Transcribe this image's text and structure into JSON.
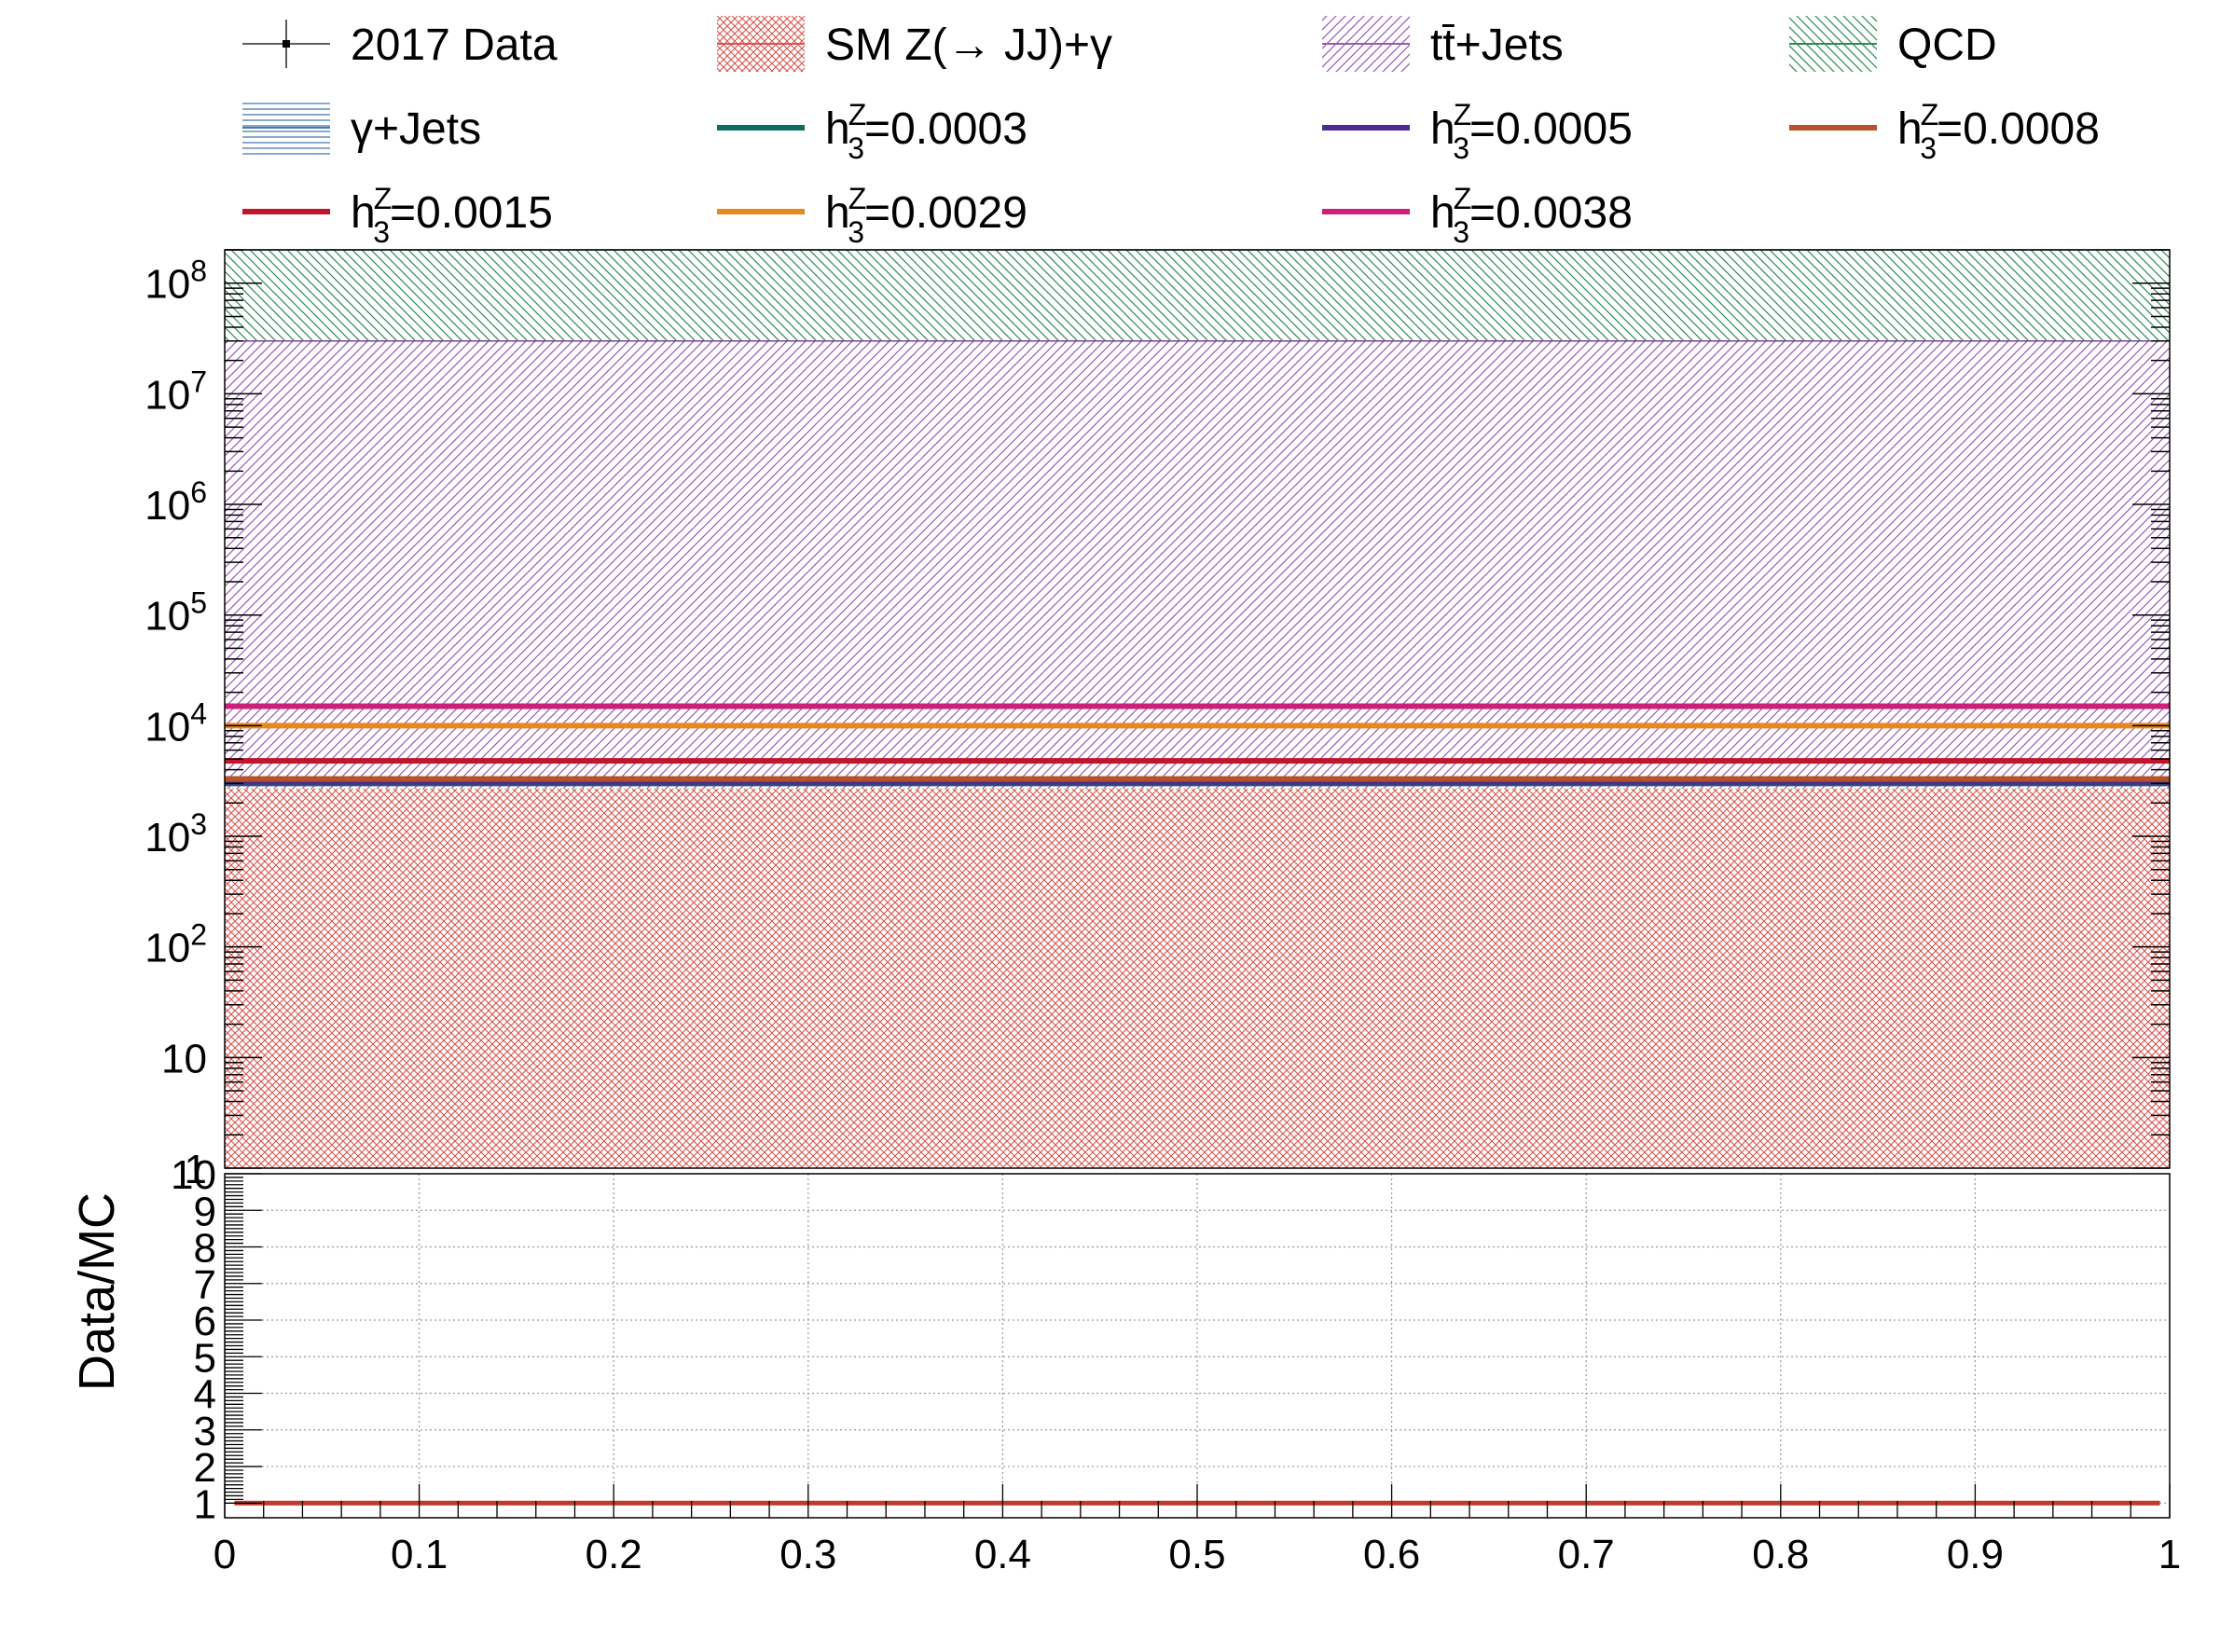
{
  "chart_data": [
    {
      "type": "area",
      "stacked": true,
      "x_range": [
        0,
        1
      ],
      "y_range": [
        1,
        200000000
      ],
      "y_scale": "log",
      "y_tick_labels": [
        "1",
        "10",
        "10²",
        "10³",
        "10⁴",
        "10⁵",
        "10⁶",
        "10⁷",
        "10⁸"
      ],
      "y_tick_values": [
        1,
        10,
        100,
        1000,
        10000,
        100000,
        1000000,
        10000000,
        100000000
      ],
      "legend_position": "top",
      "series": [
        {
          "name": "2017 Data",
          "style": "marker",
          "color": "#000000",
          "values": []
        },
        {
          "name": "SM Z(→ JJ)+γ",
          "style": "hatched-fill",
          "color": "#d9534f",
          "hatch": "cross",
          "top": 2700
        },
        {
          "name": "tt̄+Jets",
          "style": "hatched-fill",
          "color": "#9b59b6",
          "hatch": "diagonal",
          "top": 30000000
        },
        {
          "name": "QCD",
          "style": "hatched-fill",
          "color": "#2e8b57",
          "hatch": "diagonal-reverse",
          "top": 200000000
        },
        {
          "name": "γ+Jets",
          "style": "hatched-fill",
          "color": "#4a7ab0",
          "hatch": "horizontal",
          "top": 2700
        },
        {
          "name": "h3Z=0.0003",
          "label_main": "h",
          "label_sup": "Z",
          "label_sub": "3",
          "label_tail": "=0.0003",
          "style": "line",
          "color": "#0b6e5f",
          "value": 3000
        },
        {
          "name": "h3Z=0.0005",
          "label_main": "h",
          "label_sup": "Z",
          "label_sub": "3",
          "label_tail": "=0.0005",
          "style": "line",
          "color": "#4b2c91",
          "value": 3100
        },
        {
          "name": "h3Z=0.0008",
          "label_main": "h",
          "label_sup": "Z",
          "label_sub": "3",
          "label_tail": "=0.0008",
          "style": "line",
          "color": "#b5532a",
          "value": 3300
        },
        {
          "name": "h3Z=0.0015",
          "label_main": "h",
          "label_sup": "Z",
          "label_sub": "3",
          "label_tail": "=0.0015",
          "style": "line",
          "color": "#c0162c",
          "value": 4800
        },
        {
          "name": "h3Z=0.0029",
          "label_main": "h",
          "label_sup": "Z",
          "label_sub": "3",
          "label_tail": "=0.0029",
          "style": "line",
          "color": "#e8881c",
          "value": 10000
        },
        {
          "name": "h3Z=0.0038",
          "label_main": "h",
          "label_sup": "Z",
          "label_sub": "3",
          "label_tail": "=0.0038",
          "style": "line",
          "color": "#cc1f7a",
          "value": 15000
        }
      ]
    },
    {
      "type": "line",
      "ylabel": "Data/MC",
      "x_range": [
        0,
        1
      ],
      "y_range": [
        0.6,
        10
      ],
      "x_tick_labels": [
        "0",
        "0.1",
        "0.2",
        "0.3",
        "0.4",
        "0.5",
        "0.6",
        "0.7",
        "0.8",
        "0.9",
        "1"
      ],
      "x_tick_values": [
        0,
        0.1,
        0.2,
        0.3,
        0.4,
        0.5,
        0.6,
        0.7,
        0.8,
        0.9,
        1
      ],
      "y_tick_labels": [
        "1",
        "2",
        "3",
        "4",
        "5",
        "6",
        "7",
        "8",
        "9",
        "10"
      ],
      "y_tick_values": [
        1,
        2,
        3,
        4,
        5,
        6,
        7,
        8,
        9,
        10
      ],
      "grid": true,
      "series": [
        {
          "name": "",
          "color": "#c0392b",
          "x": [
            0.005,
            0.995
          ],
          "y": [
            1,
            1
          ]
        }
      ]
    }
  ]
}
